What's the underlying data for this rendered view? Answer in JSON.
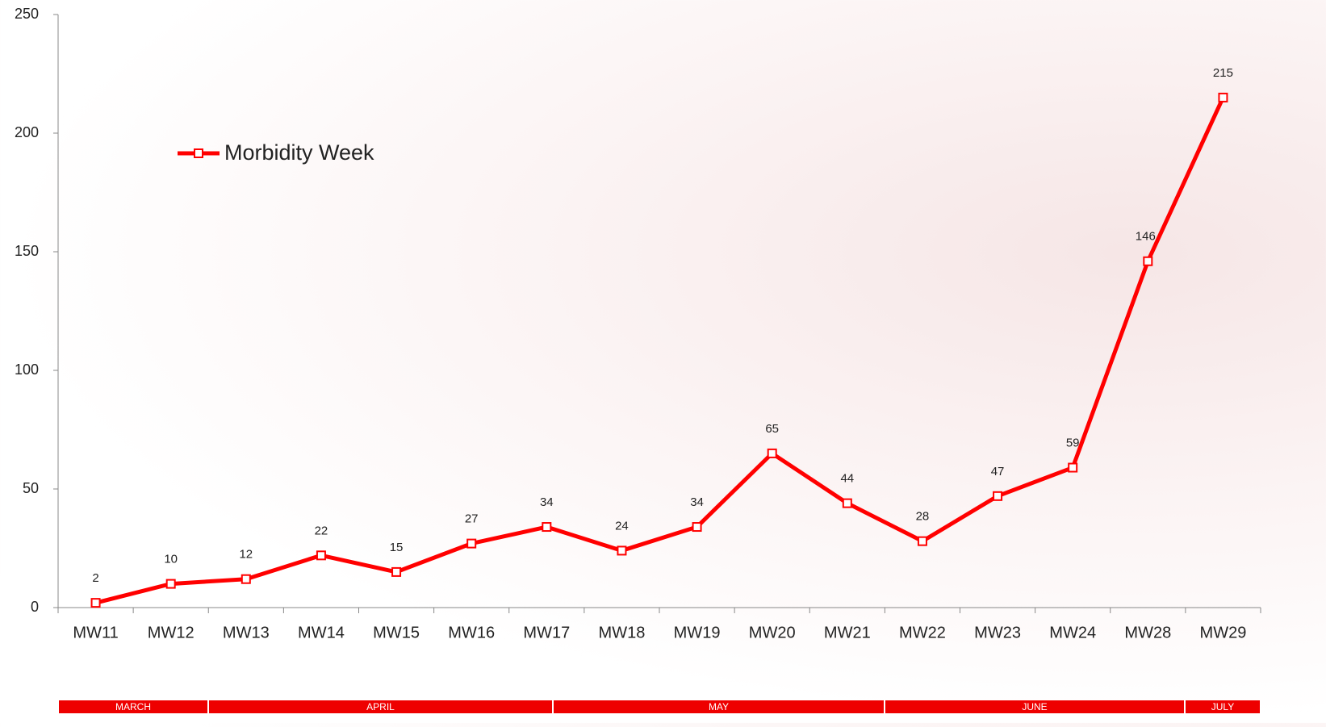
{
  "chart_data": {
    "type": "line",
    "categories": [
      "MW11",
      "MW12",
      "MW13",
      "MW14",
      "MW15",
      "MW16",
      "MW17",
      "MW18",
      "MW19",
      "MW20",
      "MW21",
      "MW22",
      "MW23",
      "MW24",
      "MW28",
      "MW29"
    ],
    "series": [
      {
        "name": "Morbidity Week",
        "color": "#ff0000",
        "values": [
          2,
          10,
          12,
          22,
          15,
          27,
          34,
          24,
          34,
          65,
          44,
          28,
          47,
          59,
          146,
          215
        ]
      }
    ],
    "ylim": [
      0,
      250
    ],
    "yticks": [
      0,
      50,
      100,
      150,
      200,
      250
    ],
    "months": [
      "MARCH",
      "APRIL",
      "MAY",
      "JUNE",
      "JULY"
    ],
    "month_color": "#ee0000"
  }
}
